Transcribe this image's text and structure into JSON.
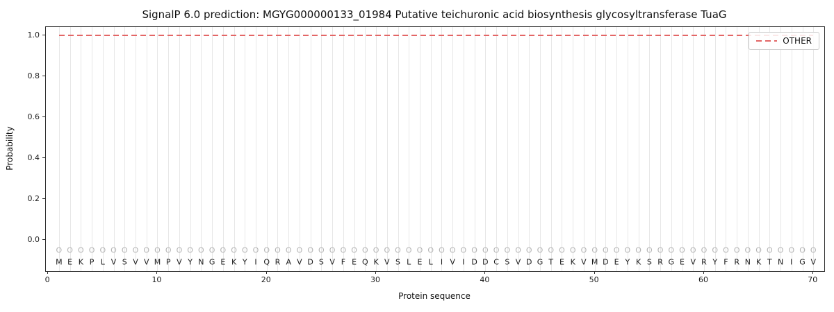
{
  "title": "SignalP 6.0 prediction: MGYG000000133_01984 Putative teichuronic acid biosynthesis glycosyltransferase TuaG",
  "chart_data": {
    "type": "line",
    "title": "SignalP 6.0 prediction: MGYG000000133_01984 Putative teichuronic acid biosynthesis glycosyltransferase TuaG",
    "xlabel": "Protein sequence",
    "ylabel": "Probability",
    "xlim": [
      -0.2,
      71.0
    ],
    "ylim": [
      -0.152,
      1.041
    ],
    "xticks": [
      "0",
      "10",
      "20",
      "30",
      "40",
      "50",
      "60",
      "70"
    ],
    "xtick_values": [
      0,
      10,
      20,
      30,
      40,
      50,
      60,
      70
    ],
    "yticks": [
      "0.0",
      "0.2",
      "0.4",
      "0.6",
      "0.8",
      "1.0"
    ],
    "ytick_values": [
      0.0,
      0.2,
      0.4,
      0.6,
      0.8,
      1.0
    ],
    "grid": true,
    "legend": {
      "position": "upper right",
      "entries": [
        {
          "label": "OTHER",
          "color": "#e36666",
          "style": "dashed"
        }
      ]
    },
    "series": [
      {
        "name": "OTHER",
        "y_constant": 1.0,
        "x_start": 1,
        "x_end": 70
      }
    ],
    "sequence": "MEKPLVSVVMPVYNGEKYIQRAVDSVFEQKVSLELIVIDDCSVDGTEKVMDEYKSRGEVRYFRNKTNIGV",
    "marker_char": "O",
    "marker_y": -0.05,
    "letter_y": -0.107
  }
}
